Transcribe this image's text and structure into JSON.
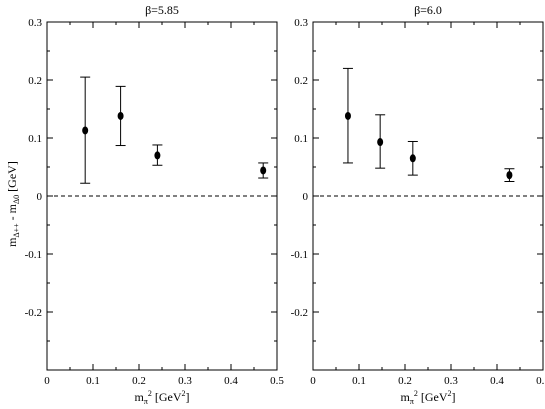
{
  "chart_data": [
    {
      "type": "scatter",
      "title": "β=5.85",
      "xlabel": "m_π^2 [GeV^2]",
      "ylabel": "m_Δ++ - m_Δ0 [GeV]",
      "xlim": [
        0,
        0.5
      ],
      "ylim": [
        -0.3,
        0.3
      ],
      "xticks": [
        0,
        0.1,
        0.2,
        0.3,
        0.4,
        0.5
      ],
      "xtick_labels": [
        "0",
        "0.1",
        "0.2",
        "0.3",
        "0.4",
        "0.5"
      ],
      "yticks": [
        -0.3,
        -0.2,
        -0.1,
        0,
        0.1,
        0.2,
        0.3
      ],
      "ytick_labels": [
        "",
        "-0.2",
        "-0.1",
        "0",
        "0.1",
        "0.2",
        "0.3"
      ],
      "reference_line": 0,
      "points": [
        {
          "x": 0.083,
          "y": 0.113,
          "err_low": 0.091,
          "err_high": 0.092
        },
        {
          "x": 0.16,
          "y": 0.138,
          "err_low": 0.051,
          "err_high": 0.051
        },
        {
          "x": 0.24,
          "y": 0.07,
          "err_low": 0.017,
          "err_high": 0.018
        },
        {
          "x": 0.47,
          "y": 0.044,
          "err_low": 0.013,
          "err_high": 0.013
        }
      ]
    },
    {
      "type": "scatter",
      "title": "β=6.0",
      "xlabel": "m_π^2 [GeV^2]",
      "ylabel": "",
      "xlim": [
        0,
        0.5
      ],
      "ylim": [
        -0.3,
        0.3
      ],
      "xticks": [
        0,
        0.1,
        0.2,
        0.3,
        0.4,
        0.5
      ],
      "xtick_labels": [
        "0",
        "0.1",
        "0.2",
        "0.3",
        "0.4",
        "0.5"
      ],
      "yticks": [
        -0.3,
        -0.2,
        -0.1,
        0,
        0.1,
        0.2,
        0.3
      ],
      "ytick_labels": [
        "",
        "-0.2",
        "-0.1",
        "0",
        "0.1",
        "0.2",
        "0.3"
      ],
      "reference_line": 0,
      "points": [
        {
          "x": 0.076,
          "y": 0.138,
          "err_low": 0.081,
          "err_high": 0.082
        },
        {
          "x": 0.146,
          "y": 0.093,
          "err_low": 0.045,
          "err_high": 0.047
        },
        {
          "x": 0.217,
          "y": 0.065,
          "err_low": 0.029,
          "err_high": 0.029
        },
        {
          "x": 0.427,
          "y": 0.036,
          "err_low": 0.011,
          "err_high": 0.011
        }
      ]
    }
  ]
}
